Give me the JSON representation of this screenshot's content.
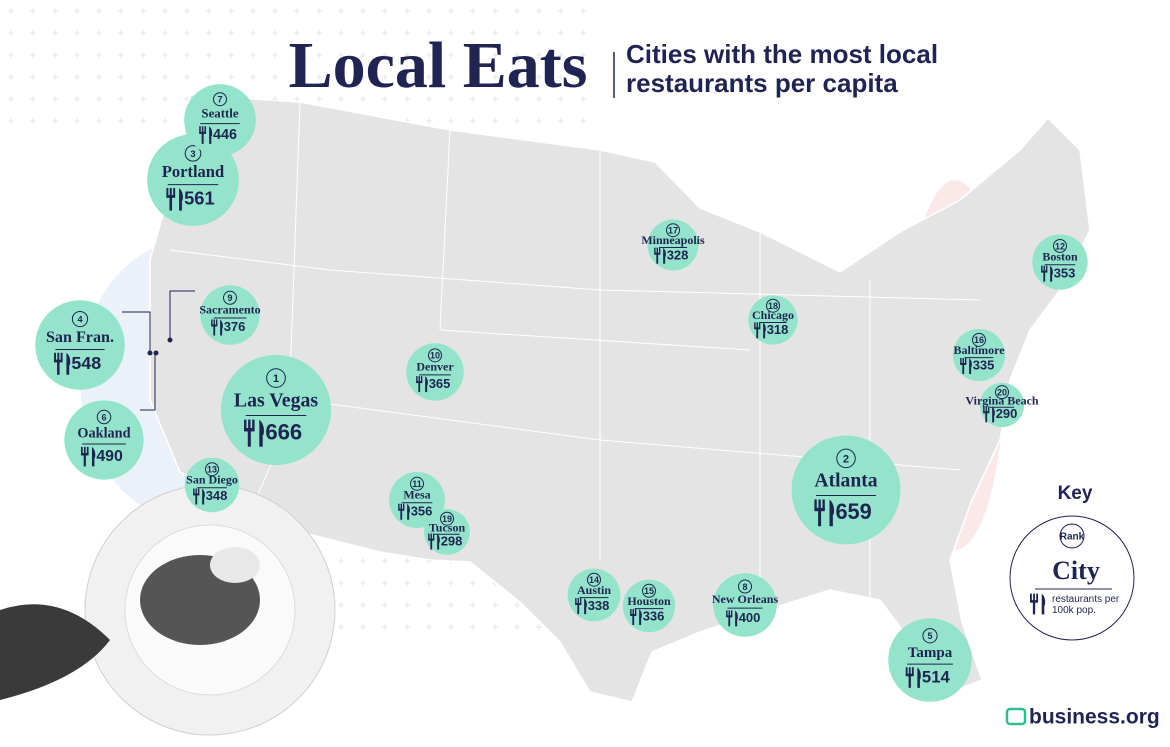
{
  "header": {
    "title": "Local Eats",
    "subtitle": "Cities with the most local restaurants per capita"
  },
  "cities": [
    {
      "rank": 1,
      "name": "Las Vegas",
      "value": 666
    },
    {
      "rank": 2,
      "name": "Atlanta",
      "value": 659
    },
    {
      "rank": 3,
      "name": "Portland",
      "value": 561
    },
    {
      "rank": 4,
      "name": "San Fran.",
      "value": 548
    },
    {
      "rank": 5,
      "name": "Tampa",
      "value": 514
    },
    {
      "rank": 6,
      "name": "Oakland",
      "value": 490
    },
    {
      "rank": 7,
      "name": "Seattle",
      "value": 446
    },
    {
      "rank": 8,
      "name": "New Orleans",
      "value": 400
    },
    {
      "rank": 9,
      "name": "Sacramento",
      "value": 376
    },
    {
      "rank": 10,
      "name": "Denver",
      "value": 365
    },
    {
      "rank": 11,
      "name": "Mesa",
      "value": 356
    },
    {
      "rank": 12,
      "name": "Boston",
      "value": 353
    },
    {
      "rank": 13,
      "name": "San Diego",
      "value": 348
    },
    {
      "rank": 14,
      "name": "Austin",
      "value": 338
    },
    {
      "rank": 15,
      "name": "Houston",
      "value": 336
    },
    {
      "rank": 16,
      "name": "Baltimore",
      "value": 335
    },
    {
      "rank": 17,
      "name": "Minneapolis",
      "value": 328
    },
    {
      "rank": 18,
      "name": "Chicago",
      "value": 318
    },
    {
      "rank": 19,
      "name": "Tucson",
      "value": 298
    },
    {
      "rank": 20,
      "name": "Virgina Beach",
      "value": 290
    }
  ],
  "key": {
    "title": "Key",
    "rank": "Rank",
    "city": "City",
    "metric": "restaurants per 100k pop."
  },
  "logo": "business.org"
}
